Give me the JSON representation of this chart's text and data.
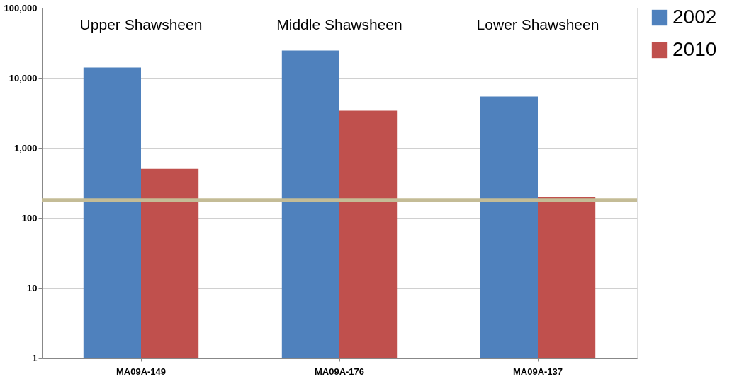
{
  "chart_data": {
    "type": "bar",
    "categories": [
      "MA09A-149",
      "MA09A-176",
      "MA09A-137"
    ],
    "series": [
      {
        "name": "2002",
        "color": "#4f81bd",
        "values": [
          14000,
          24500,
          5400
        ]
      },
      {
        "name": "2010",
        "color": "#c0504d",
        "values": [
          500,
          3400,
          200
        ]
      }
    ],
    "log": true,
    "ylim": [
      1,
      100000
    ],
    "yticks": [
      1,
      10,
      100,
      {
        "value": 1000,
        "label": "1,000"
      },
      {
        "value": 10000,
        "label": "10,000"
      },
      {
        "value": 100000,
        "label": "100,000"
      }
    ],
    "grid": "y",
    "legend": "right",
    "ref_lines": [
      {
        "axis": "y",
        "value": 180,
        "color": "#c4bc96"
      }
    ],
    "annotations": [
      "Upper Shawsheen",
      "Middle Shawsheen",
      "Lower Shawsheen"
    ]
  }
}
